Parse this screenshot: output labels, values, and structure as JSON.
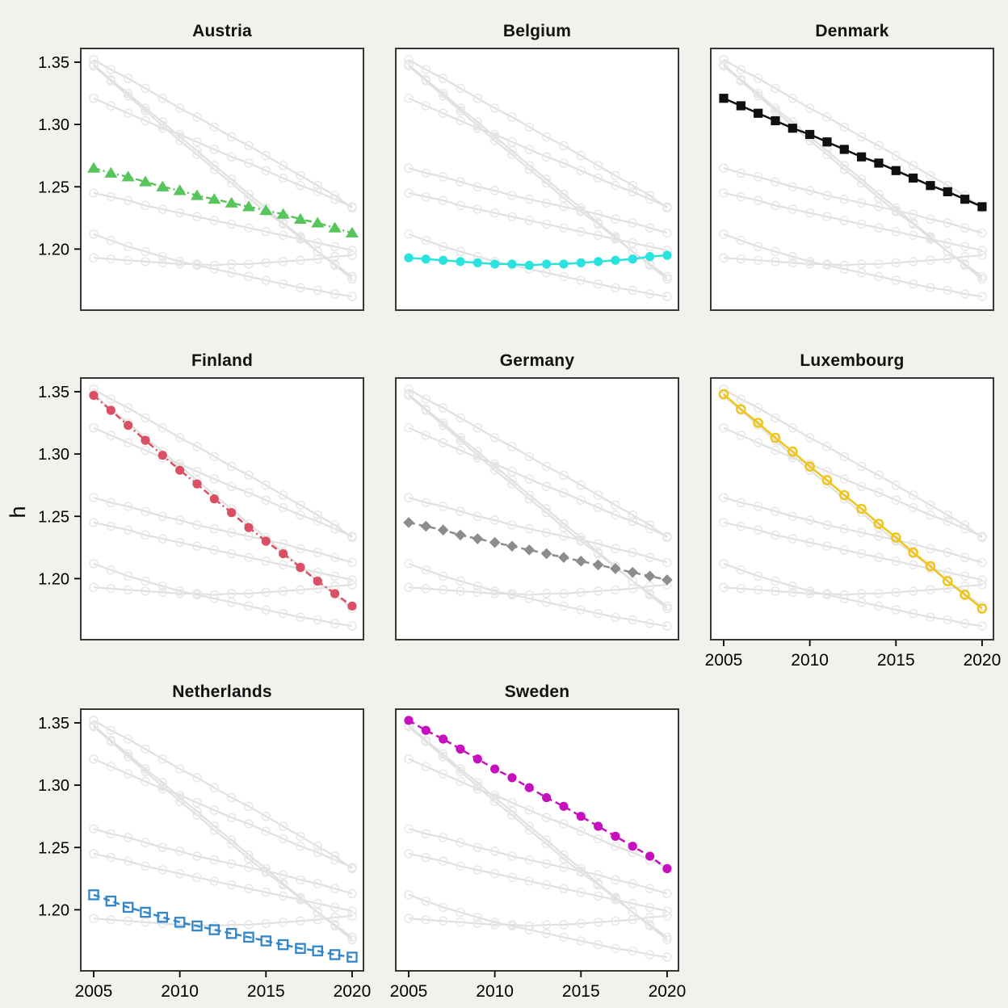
{
  "figure": {
    "background": "#F2F2EC",
    "panel_background": "#FFFFFF",
    "panel_border_color": "#363636",
    "other_series_line_color": "#E0E0E0",
    "other_series_marker_color": "#E7E7E7",
    "tick_color": "#000000"
  },
  "chart_data": {
    "type": "line",
    "facet_by": "country",
    "title": "",
    "xlabel": "",
    "ylabel": "h",
    "grid": false,
    "legend": false,
    "x": [
      2005,
      2006,
      2007,
      2008,
      2009,
      2010,
      2011,
      2012,
      2013,
      2014,
      2015,
      2016,
      2017,
      2018,
      2019,
      2020
    ],
    "x_ticks": [
      2005,
      2010,
      2015,
      2020
    ],
    "x_tick_labels": [
      "2005",
      "2010",
      "2015",
      "2020"
    ],
    "y_ticks": [
      1.35,
      1.3,
      1.25,
      1.2
    ],
    "y_tick_labels": [
      "1.35",
      "1.30",
      "1.25",
      "1.20"
    ],
    "xlim": [
      2004.25,
      2020.66
    ],
    "ylim": [
      1.151,
      1.361
    ],
    "series": [
      {
        "name": "Austria",
        "color": "#58C45C",
        "marker": "triangle",
        "filled": true,
        "dash": "8 4 2 4",
        "values": [
          1.265,
          1.261,
          1.258,
          1.254,
          1.25,
          1.247,
          1.243,
          1.24,
          1.237,
          1.234,
          1.231,
          1.228,
          1.224,
          1.221,
          1.217,
          1.213
        ]
      },
      {
        "name": "Belgium",
        "color": "#2BE3DE",
        "marker": "circle",
        "filled": true,
        "dash": "",
        "values": [
          1.193,
          1.192,
          1.191,
          1.19,
          1.189,
          1.188,
          1.188,
          1.187,
          1.188,
          1.188,
          1.189,
          1.19,
          1.191,
          1.192,
          1.194,
          1.195
        ]
      },
      {
        "name": "Denmark",
        "color": "#101010",
        "marker": "square",
        "filled": true,
        "dash": "",
        "values": [
          1.321,
          1.315,
          1.309,
          1.303,
          1.297,
          1.292,
          1.286,
          1.28,
          1.274,
          1.269,
          1.263,
          1.257,
          1.251,
          1.246,
          1.24,
          1.234
        ]
      },
      {
        "name": "Finland",
        "color": "#D95064",
        "marker": "circle",
        "filled": true,
        "dash": "8 4 2 4",
        "values": [
          1.347,
          1.335,
          1.323,
          1.311,
          1.299,
          1.287,
          1.276,
          1.264,
          1.253,
          1.241,
          1.23,
          1.22,
          1.209,
          1.198,
          1.188,
          1.178
        ]
      },
      {
        "name": "Germany",
        "color": "#8C8C8C",
        "marker": "diamond",
        "filled": true,
        "dash": "8 5",
        "values": [
          1.245,
          1.242,
          1.239,
          1.235,
          1.232,
          1.229,
          1.226,
          1.223,
          1.22,
          1.217,
          1.214,
          1.211,
          1.208,
          1.205,
          1.202,
          1.199
        ]
      },
      {
        "name": "Luxembourg",
        "color": "#F0C418",
        "marker": "circle",
        "filled": false,
        "dash": "",
        "values": [
          1.348,
          1.336,
          1.325,
          1.313,
          1.302,
          1.29,
          1.279,
          1.267,
          1.256,
          1.244,
          1.233,
          1.221,
          1.21,
          1.198,
          1.187,
          1.176
        ]
      },
      {
        "name": "Netherlands",
        "color": "#3286C9",
        "marker": "square",
        "filled": false,
        "dash": "8 5",
        "values": [
          1.212,
          1.207,
          1.202,
          1.198,
          1.194,
          1.19,
          1.187,
          1.184,
          1.181,
          1.178,
          1.175,
          1.172,
          1.169,
          1.167,
          1.164,
          1.162
        ]
      },
      {
        "name": "Sweden",
        "color": "#C610BD",
        "marker": "circle",
        "filled": true,
        "dash": "8 5",
        "values": [
          1.352,
          1.344,
          1.337,
          1.329,
          1.321,
          1.313,
          1.306,
          1.298,
          1.29,
          1.283,
          1.275,
          1.267,
          1.259,
          1.251,
          1.243,
          1.233
        ]
      }
    ],
    "panels": [
      {
        "id": "austria",
        "title": "Austria",
        "series": "Austria",
        "row": 0,
        "col": 0,
        "show_y_ticks": true,
        "show_x_ticks": false
      },
      {
        "id": "belgium",
        "title": "Belgium",
        "series": "Belgium",
        "row": 0,
        "col": 1,
        "show_y_ticks": false,
        "show_x_ticks": false
      },
      {
        "id": "denmark",
        "title": "Denmark",
        "series": "Denmark",
        "row": 0,
        "col": 2,
        "show_y_ticks": false,
        "show_x_ticks": false
      },
      {
        "id": "finland",
        "title": "Finland",
        "series": "Finland",
        "row": 1,
        "col": 0,
        "show_y_ticks": true,
        "show_x_ticks": false
      },
      {
        "id": "germany",
        "title": "Germany",
        "series": "Germany",
        "row": 1,
        "col": 1,
        "show_y_ticks": false,
        "show_x_ticks": false
      },
      {
        "id": "luxembourg",
        "title": "Luxembourg",
        "series": "Luxembourg",
        "row": 1,
        "col": 2,
        "show_y_ticks": false,
        "show_x_ticks": true
      },
      {
        "id": "netherlands",
        "title": "Netherlands",
        "series": "Netherlands",
        "row": 2,
        "col": 0,
        "show_y_ticks": true,
        "show_x_ticks": true
      },
      {
        "id": "sweden",
        "title": "Sweden",
        "series": "Sweden",
        "row": 2,
        "col": 1,
        "show_y_ticks": false,
        "show_x_ticks": true
      }
    ]
  }
}
